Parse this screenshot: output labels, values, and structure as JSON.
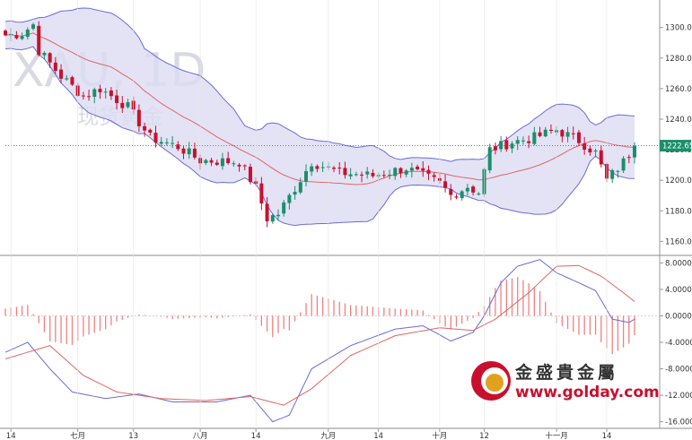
{
  "watermark": {
    "symbol": "XAU, 1D",
    "subtitle": "现货黄金"
  },
  "logo": {
    "name_cn": "金盛貴金屬",
    "url": "www.golday.com"
  },
  "last_price_label": "1222.65",
  "colors": {
    "up": "#1a8f6a",
    "down": "#c8102e",
    "band_fill": "#dcdcf2",
    "band_line": "#6b6bd6",
    "mid_line": "#e06565",
    "macd_line": "#6b6bd6",
    "signal_line": "#e06565",
    "hist": "#f08080"
  },
  "chart_data": [
    {
      "type": "candlestick",
      "indicators": [
        "bollinger_bands_20",
        "middle_band"
      ],
      "y_ticks": [
        "1300.00",
        "1280.00",
        "1260.00",
        "1240.00",
        "1220.00",
        "1200.00",
        "1180.00",
        "1160.00"
      ],
      "ylim": [
        1152,
        1318
      ],
      "x_ticks": [
        {
          "label": "14",
          "index": 1
        },
        {
          "label": "七月",
          "index": 13
        },
        {
          "label": "13",
          "index": 23
        },
        {
          "label": "八月",
          "index": 35
        },
        {
          "label": "14",
          "index": 45
        },
        {
          "label": "九月",
          "index": 58
        },
        {
          "label": "14",
          "index": 67
        },
        {
          "label": "十月",
          "index": 78
        },
        {
          "label": "12",
          "index": 86
        },
        {
          "label": "十一月",
          "index": 99
        },
        {
          "label": "14",
          "index": 108
        }
      ],
      "price_anchors": [
        [
          0,
          1295
        ],
        [
          3,
          1296
        ],
        [
          5,
          1302
        ],
        [
          6,
          1285
        ],
        [
          10,
          1268
        ],
        [
          14,
          1255
        ],
        [
          17,
          1260
        ],
        [
          22,
          1248
        ],
        [
          26,
          1228
        ],
        [
          31,
          1222
        ],
        [
          35,
          1213
        ],
        [
          42,
          1212
        ],
        [
          45,
          1195
        ],
        [
          47,
          1175
        ],
        [
          49,
          1178
        ],
        [
          52,
          1195
        ],
        [
          55,
          1212
        ],
        [
          60,
          1205
        ],
        [
          66,
          1203
        ],
        [
          72,
          1208
        ],
        [
          78,
          1198
        ],
        [
          80,
          1190
        ],
        [
          83,
          1196
        ],
        [
          85,
          1192
        ],
        [
          87,
          1220
        ],
        [
          91,
          1225
        ],
        [
          95,
          1228
        ],
        [
          99,
          1233
        ],
        [
          103,
          1226
        ],
        [
          106,
          1218
        ],
        [
          108,
          1200
        ],
        [
          111,
          1212
        ],
        [
          113,
          1222
        ]
      ],
      "n_candles": 114,
      "last_price": 1222.65
    },
    {
      "type": "macd",
      "y_ticks": [
        "8.0000",
        "4.0000",
        "0.0000",
        "-4.0000",
        "-8.0000",
        "-12.0000",
        "-16.0000"
      ],
      "ylim": [
        -17,
        9
      ],
      "macd_anchors": [
        [
          0,
          -5.5
        ],
        [
          4,
          -4
        ],
        [
          8,
          -8
        ],
        [
          12,
          -11.5
        ],
        [
          18,
          -12.5
        ],
        [
          24,
          -11.8
        ],
        [
          30,
          -13
        ],
        [
          38,
          -13
        ],
        [
          44,
          -12
        ],
        [
          48,
          -16
        ],
        [
          51,
          -15
        ],
        [
          55,
          -8
        ],
        [
          62,
          -4.5
        ],
        [
          70,
          -2
        ],
        [
          75,
          -1.5
        ],
        [
          80,
          -3.8
        ],
        [
          84,
          -2.5
        ],
        [
          86,
          0
        ],
        [
          89,
          5
        ],
        [
          92,
          7.5
        ],
        [
          96,
          8.5
        ],
        [
          99,
          6.5
        ],
        [
          103,
          5
        ],
        [
          106,
          3.8
        ],
        [
          109,
          -0.5
        ],
        [
          112,
          -1
        ],
        [
          114,
          0
        ]
      ],
      "signal_anchors": [
        [
          0,
          -6.5
        ],
        [
          8,
          -4.5
        ],
        [
          14,
          -9
        ],
        [
          20,
          -11.5
        ],
        [
          28,
          -12.5
        ],
        [
          36,
          -12.8
        ],
        [
          44,
          -12.2
        ],
        [
          50,
          -13.5
        ],
        [
          55,
          -11
        ],
        [
          62,
          -6
        ],
        [
          70,
          -3
        ],
        [
          78,
          -1.8
        ],
        [
          84,
          -2.2
        ],
        [
          88,
          -0.5
        ],
        [
          94,
          3.5
        ],
        [
          99,
          7.5
        ],
        [
          103,
          7.6
        ],
        [
          107,
          6
        ],
        [
          111,
          3.5
        ],
        [
          114,
          1.5
        ]
      ]
    }
  ]
}
